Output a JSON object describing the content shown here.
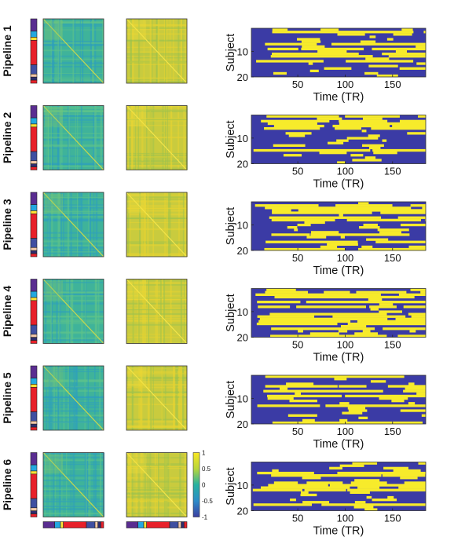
{
  "figure": {
    "pipelines": [
      {
        "label": "Pipeline 1",
        "seed": 11
      },
      {
        "label": "Pipeline 2",
        "seed": 23
      },
      {
        "label": "Pipeline 3",
        "seed": 37
      },
      {
        "label": "Pipeline 4",
        "seed": 41
      },
      {
        "label": "Pipeline 5",
        "seed": 53
      },
      {
        "label": "Pipeline 6",
        "seed": 67
      }
    ],
    "network_colors": [
      "#5a2d91",
      "#23a8e0",
      "#ffe234",
      "#e8202a",
      "#e8202a",
      "#3f4fa1",
      "#f3c9a9",
      "#2d2d6e",
      "#e8202a"
    ],
    "network_weights": [
      4,
      2,
      1,
      8,
      0,
      3,
      1,
      1,
      1
    ],
    "colorbar": {
      "ticks": [
        "1",
        "0.5",
        "0",
        "-0.5",
        "-1"
      ],
      "colors": [
        "#f9e721",
        "#b8d63a",
        "#27b1a1",
        "#2d8cc8",
        "#3b3fa1"
      ]
    }
  },
  "chart_data": {
    "type": "heatmap",
    "colormap": "parula",
    "panels": 6,
    "xlabel": "Time (TR)",
    "ylabel": "Subject",
    "xticks": [
      50,
      100,
      150
    ],
    "yticks": [
      10,
      20
    ],
    "xlim": [
      1,
      185
    ],
    "ylim": [
      1,
      20
    ],
    "state_colors": {
      "off": "#3b3ba5",
      "on": "#f7eb2b"
    },
    "on_fraction": [
      0.22,
      0.27,
      0.36,
      0.24,
      0.26,
      0.24
    ]
  }
}
